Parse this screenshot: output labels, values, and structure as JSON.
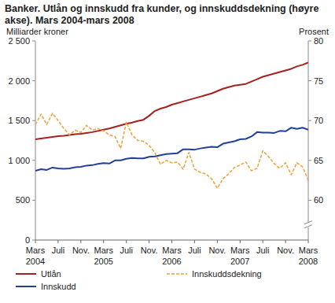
{
  "chart_data": {
    "type": "line",
    "title": "Banker. Utlån og innskudd fra kunder, og innskuddsdekning (høyre akse). Mars 2004-mars 2008",
    "y_label": "Milliarder kroner",
    "y2_label": "Prosent",
    "categories": [
      "Mars 2004",
      null,
      null,
      null,
      "Juli",
      null,
      null,
      null,
      "Nov.",
      null,
      null,
      null,
      "Mars 2005",
      null,
      null,
      null,
      "Juli",
      null,
      null,
      null,
      "Nov.",
      null,
      null,
      null,
      "Mars 2006",
      null,
      null,
      null,
      "Juli",
      null,
      null,
      null,
      "Nov.",
      null,
      null,
      null,
      "Mars 2007",
      null,
      null,
      null,
      "Juli",
      null,
      null,
      null,
      "Nov.",
      null,
      null,
      null,
      "Mars 2008"
    ],
    "series": [
      {
        "name": "Utlån",
        "color": "#a3211f",
        "line_style": "solid",
        "values": [
          1265,
          1275,
          1285,
          1295,
          1305,
          1310,
          1320,
          1330,
          1335,
          1345,
          1355,
          1370,
          1385,
          1400,
          1420,
          1440,
          1460,
          1475,
          1495,
          1510,
          1560,
          1620,
          1650,
          1670,
          1700,
          1720,
          1740,
          1760,
          1780,
          1800,
          1820,
          1840,
          1870,
          1900,
          1920,
          1940,
          1950,
          1960,
          1990,
          2020,
          2050,
          2070,
          2090,
          2110,
          2130,
          2150,
          2180,
          2200,
          2230
        ]
      },
      {
        "name": "Innskudd",
        "color": "#22409a",
        "line_style": "solid",
        "values": [
          870,
          890,
          880,
          910,
          900,
          895,
          900,
          915,
          920,
          935,
          940,
          955,
          965,
          960,
          1000,
          1000,
          1020,
          1030,
          1025,
          1025,
          1045,
          1050,
          1065,
          1080,
          1085,
          1090,
          1140,
          1140,
          1135,
          1150,
          1160,
          1170,
          1165,
          1210,
          1225,
          1240,
          1265,
          1270,
          1300,
          1355,
          1350,
          1350,
          1345,
          1370,
          1365,
          1410,
          1395,
          1410,
          1385
        ]
      },
      {
        "name": "Innskuddsdekning",
        "color": "#f0a132",
        "line_style": "dashed",
        "axis": "y2",
        "values": [
          69.5,
          70.8,
          69.5,
          70.9,
          70.0,
          69.0,
          68.2,
          68.8,
          68.5,
          69.4,
          68.8,
          69.0,
          68.7,
          68.2,
          68.0,
          66.5,
          69.8,
          68.2,
          67.5,
          67.4,
          66.9,
          66.0,
          64.5,
          65.0,
          64.7,
          64.8,
          63.9,
          66.0,
          63.9,
          63.5,
          63.3,
          62.7,
          61.5,
          62.7,
          63.3,
          64.1,
          64.4,
          64.8,
          63.7,
          64.0,
          66.2,
          65.5,
          64.6,
          64.0,
          64.7,
          63.2,
          64.7,
          64.2,
          62.5
        ]
      }
    ],
    "ylim": [
      0,
      2500
    ],
    "yticks": [
      0,
      500,
      {
        "value": 1000,
        "label": "1 000"
      },
      {
        "value": 1500,
        "label": "1 500"
      },
      {
        "value": 2000,
        "label": "2 000"
      },
      {
        "value": 2500,
        "label": "2 500"
      }
    ],
    "y2lim": [
      55,
      80
    ],
    "y2ticks": [
      60,
      65,
      70,
      75,
      80
    ],
    "grid": false,
    "legend": "bottom"
  }
}
